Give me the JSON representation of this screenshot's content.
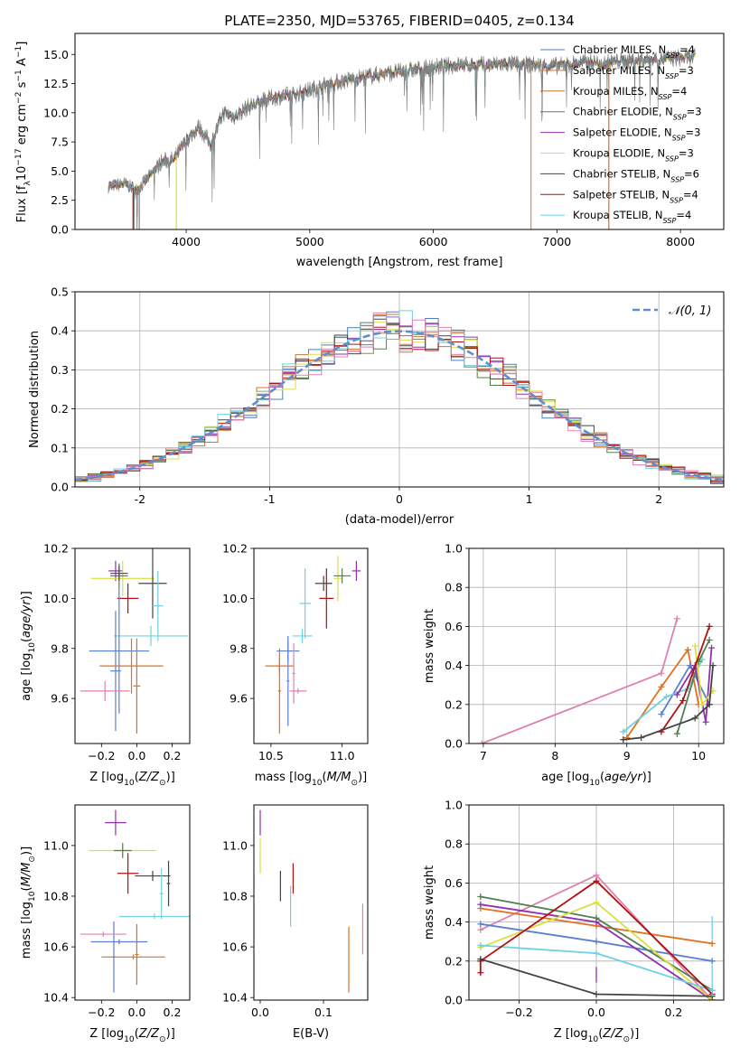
{
  "chart_data": [
    {
      "type": "line",
      "title": "PLATE=2350, MJD=53765, FIBERID=0405, z=0.134",
      "xlabel": "wavelength [Angstrom, rest frame]",
      "ylabel": "Flux [fλ10⁻¹⁷ erg cm⁻² s⁻¹ A⁻¹]",
      "xlim": [
        3100,
        8350
      ],
      "ylim": [
        0,
        16.8
      ],
      "xticks": [
        4000,
        5000,
        6000,
        7000,
        8000
      ],
      "yticks": [
        0.0,
        2.5,
        5.0,
        7.5,
        10.0,
        12.5,
        15.0
      ],
      "grid": false,
      "legend_position": "top-right",
      "data_range_x": [
        3370,
        8120
      ],
      "continuum_knots": {
        "x": [
          3370,
          3500,
          3600,
          3700,
          3800,
          3900,
          4000,
          4100,
          4200,
          4300,
          4400,
          4500,
          4700,
          4900,
          5100,
          5300,
          5500,
          5800,
          6000,
          6200,
          6400,
          6600,
          6800,
          7000,
          7200,
          7400,
          7600,
          7800,
          8000,
          8120
        ],
        "y": [
          3.7,
          3.9,
          3.4,
          4.5,
          5.8,
          6.0,
          7.6,
          8.8,
          7.3,
          10.0,
          9.7,
          10.5,
          11.3,
          11.6,
          12.3,
          12.8,
          13.2,
          13.6,
          13.9,
          14.1,
          14.1,
          14.2,
          14.1,
          14.0,
          14.3,
          14.3,
          14.5,
          14.6,
          14.7,
          14.8
        ]
      },
      "series": [
        {
          "name": "Chabrier MILES, N_SSP=4",
          "label_main": "Chabrier MILES, N",
          "label_sub": "SSP",
          "label_tail": "=4",
          "color": "#4a7fc0"
        },
        {
          "name": "Salpeter MILES, N_SSP=3",
          "label_main": "Salpeter MILES, N",
          "label_sub": "SSP",
          "label_tail": "=3",
          "color": "#e07020"
        },
        {
          "name": "Kroupa MILES, N_SSP=4",
          "label_main": "Kroupa MILES, N",
          "label_sub": "SSP",
          "label_tail": "=4",
          "color": "#c07830"
        },
        {
          "name": "Chabrier ELODIE, N_SSP=3",
          "label_main": "Chabrier ELODIE, N",
          "label_sub": "SSP",
          "label_tail": "=3",
          "color": "#508050"
        },
        {
          "name": "Salpeter ELODIE, N_SSP=3",
          "label_main": "Salpeter ELODIE, N",
          "label_sub": "SSP",
          "label_tail": "=3",
          "color": "#9030b0"
        },
        {
          "name": "Kroupa ELODIE, N_SSP=3",
          "label_main": "Kroupa ELODIE, N",
          "label_sub": "SSP",
          "label_tail": "=3",
          "color": "#d8e040"
        },
        {
          "name": "Chabrier STELIB, N_SSP=6",
          "label_main": "Chabrier STELIB, N",
          "label_sub": "SSP",
          "label_tail": "=6",
          "color": "#444444"
        },
        {
          "name": "Salpeter STELIB, N_SSP=4",
          "label_main": "Salpeter STELIB, N",
          "label_sub": "SSP",
          "label_tail": "=4",
          "color": "#b01010"
        },
        {
          "name": "Kroupa STELIB, N_SSP=4",
          "label_main": "Kroupa STELIB, N",
          "label_sub": "SSP",
          "label_tail": "=4",
          "color": "#70d0e0"
        }
      ],
      "data_line_color": "#808080",
      "vertical_drops": [
        {
          "x": 3570,
          "color": "#b01010"
        },
        {
          "x": 3620,
          "color": "#808080"
        },
        {
          "x": 3920,
          "color": "#d8e040"
        },
        {
          "x": 6790,
          "color": "#c8a040"
        },
        {
          "x": 7420,
          "color": "#e07020"
        }
      ]
    },
    {
      "type": "histogram",
      "xlabel": "(data-model)/error",
      "ylabel": "Normed distribution",
      "xlim": [
        -2.5,
        2.5
      ],
      "ylim": [
        0,
        0.5
      ],
      "xticks": [
        -2,
        -1,
        0,
        1,
        2
      ],
      "yticks": [
        0.0,
        0.1,
        0.2,
        0.3,
        0.4,
        0.5
      ],
      "grid": true,
      "legend_position": "top-right",
      "bin_width": 0.1,
      "reference_curve": {
        "name": "𝒩(0, 1)",
        "mean": 0,
        "sigma": 1,
        "color": "#5b8fd0",
        "style": "dashed"
      },
      "series_colors": [
        "#4a7fc0",
        "#e07020",
        "#c07830",
        "#508050",
        "#9030b0",
        "#d8e040",
        "#444444",
        "#b01010",
        "#70d0e0",
        "#e080b0"
      ]
    },
    {
      "type": "scatter",
      "subtype": "errorbar",
      "xlabel": "Z [log₁₀(Z/Z⊙)]",
      "ylabel": "age  [log₁₀(age/yr)]",
      "xlim": [
        -0.35,
        0.3
      ],
      "ylim": [
        9.42,
        10.2
      ],
      "xticks": [
        -0.2,
        0.0,
        0.2
      ],
      "xticklabels": [
        "−0.2",
        "0.0",
        "0.2"
      ],
      "yticks": [
        9.6,
        9.8,
        10.0,
        10.2
      ],
      "yticklabels": [
        "9.6",
        "9.8",
        "10.0",
        "10.2"
      ],
      "grid": false,
      "points": [
        {
          "x": -0.12,
          "y": 10.11,
          "xerr": 0.04,
          "yerr": 0.04,
          "color": "#9030b0"
        },
        {
          "x": -0.08,
          "y": 10.08,
          "xerr": 0.18,
          "yerr": 0.07,
          "color": "#d8e040"
        },
        {
          "x": -0.1,
          "y": 10.09,
          "xerr": 0.05,
          "yerr": 0.05,
          "color": "#508050"
        },
        {
          "x": -0.1,
          "y": 10.1,
          "xerr": 0.05,
          "yerr": 0.03,
          "color": "#444444"
        },
        {
          "x": -0.05,
          "y": 10.0,
          "xerr": 0.06,
          "yerr": 0.06,
          "color": "#b01010"
        },
        {
          "x": 0.09,
          "y": 10.06,
          "xerr": 0.08,
          "yerr": 0.14,
          "color": "#444444"
        },
        {
          "x": 0.12,
          "y": 9.97,
          "xerr": 0.03,
          "yerr": 0.14,
          "color": "#70d0e0"
        },
        {
          "x": 0.08,
          "y": 9.85,
          "xerr": 0.21,
          "yerr": 0.04,
          "color": "#70d0e0"
        },
        {
          "x": -0.1,
          "y": 9.79,
          "xerr": 0.17,
          "yerr": 0.25,
          "color": "#5b7fd0"
        },
        {
          "x": -0.12,
          "y": 9.71,
          "xerr": 0.03,
          "yerr": 0.24,
          "color": "#5b7fd0"
        },
        {
          "x": -0.03,
          "y": 9.73,
          "xerr": 0.18,
          "yerr": 0.11,
          "color": "#e07020"
        },
        {
          "x": 0.0,
          "y": 9.65,
          "xerr": 0.02,
          "yerr": 0.19,
          "color": "#e07020"
        },
        {
          "x": -0.18,
          "y": 9.63,
          "xerr": 0.14,
          "yerr": 0.04,
          "color": "#e080b0"
        }
      ]
    },
    {
      "type": "scatter",
      "subtype": "errorbar",
      "xlabel": "mass [log₁₀(M/M⊙)]",
      "xlim": [
        10.38,
        11.18
      ],
      "ylim": [
        9.42,
        10.2
      ],
      "xticks": [
        10.5,
        11.0
      ],
      "xticklabels": [
        "10.5",
        "11.0"
      ],
      "yticks": [
        9.6,
        9.8,
        10.0,
        10.2
      ],
      "yticklabels": [
        "9.6",
        "9.8",
        "10.0",
        "10.2"
      ],
      "grid": false,
      "points": [
        {
          "x": 11.1,
          "y": 10.11,
          "xerr": 0.03,
          "yerr": 0.04,
          "color": "#9030b0"
        },
        {
          "x": 10.97,
          "y": 10.08,
          "xerr": 0.03,
          "yerr": 0.09,
          "color": "#d8e040"
        },
        {
          "x": 11.0,
          "y": 10.09,
          "xerr": 0.06,
          "yerr": 0.03,
          "color": "#508050"
        },
        {
          "x": 10.87,
          "y": 10.06,
          "xerr": 0.06,
          "yerr": 0.03,
          "color": "#444444"
        },
        {
          "x": 10.89,
          "y": 10.0,
          "xerr": 0.05,
          "yerr": 0.12,
          "color": "#b01010"
        },
        {
          "x": 10.74,
          "y": 9.98,
          "xerr": 0.04,
          "yerr": 0.14,
          "color": "#70d0e0"
        },
        {
          "x": 10.72,
          "y": 9.85,
          "xerr": 0.07,
          "yerr": 0.03,
          "color": "#70d0e0"
        },
        {
          "x": 10.62,
          "y": 9.79,
          "xerr": 0.08,
          "yerr": 0.04,
          "color": "#5b7fd0"
        },
        {
          "x": 10.62,
          "y": 9.67,
          "xerr": 0.01,
          "yerr": 0.18,
          "color": "#5b7fd0"
        },
        {
          "x": 10.56,
          "y": 9.73,
          "xerr": 0.1,
          "yerr": 0.03,
          "color": "#e07020"
        },
        {
          "x": 10.56,
          "y": 9.63,
          "xerr": 0.01,
          "yerr": 0.17,
          "color": "#e07020"
        },
        {
          "x": 10.66,
          "y": 9.7,
          "xerr": 0.01,
          "yerr": 0.12,
          "color": "#e080b0"
        },
        {
          "x": 10.69,
          "y": 9.63,
          "xerr": 0.06,
          "yerr": 0.01,
          "color": "#e080b0"
        }
      ]
    },
    {
      "type": "line",
      "xlabel": "age  [log₁₀(age/yr)]",
      "ylabel": "mass weight",
      "xlim": [
        6.8,
        10.35
      ],
      "ylim": [
        0,
        1.0
      ],
      "xticks": [
        7,
        8,
        9,
        10
      ],
      "xticklabels": [
        "7",
        "8",
        "9",
        "10"
      ],
      "yticks": [
        0.0,
        0.2,
        0.4,
        0.6,
        0.8,
        1.0
      ],
      "yticklabels": [
        "0.0",
        "0.2",
        "0.4",
        "0.6",
        "0.8",
        "1.0"
      ],
      "grid": true,
      "series": [
        {
          "color": "#e080b0",
          "x": [
            6.98,
            9.48,
            9.7
          ],
          "y": [
            0.0,
            0.36,
            0.64
          ]
        },
        {
          "color": "#e07020",
          "x": [
            9.0,
            9.48,
            9.85,
            10.0
          ],
          "y": [
            0.03,
            0.29,
            0.48,
            0.2
          ]
        },
        {
          "color": "#5b7fd0",
          "x": [
            9.48,
            9.88,
            10.15
          ],
          "y": [
            0.15,
            0.4,
            0.2
          ]
        },
        {
          "color": "#70d0e0",
          "x": [
            8.95,
            9.55,
            9.85,
            10.05
          ],
          "y": [
            0.06,
            0.24,
            0.28,
            0.43
          ]
        },
        {
          "color": "#508050",
          "x": [
            9.7,
            10.0,
            10.15
          ],
          "y": [
            0.05,
            0.42,
            0.53
          ]
        },
        {
          "color": "#9030b0",
          "x": [
            9.7,
            9.95,
            10.1,
            10.18
          ],
          "y": [
            0.25,
            0.4,
            0.11,
            0.49
          ]
        },
        {
          "color": "#d8e040",
          "x": [
            9.95,
            10.05,
            10.2
          ],
          "y": [
            0.5,
            0.2,
            0.27
          ]
        },
        {
          "color": "#b01010",
          "x": [
            9.48,
            9.78,
            10.15
          ],
          "y": [
            0.06,
            0.22,
            0.6
          ]
        },
        {
          "color": "#444444",
          "x": [
            8.95,
            9.2,
            9.95,
            10.15,
            10.2
          ],
          "y": [
            0.02,
            0.03,
            0.13,
            0.2,
            0.4
          ]
        }
      ]
    },
    {
      "type": "scatter",
      "subtype": "errorbar",
      "xlabel": "Z [log₁₀(Z/Z⊙)]",
      "ylabel": "mass [log₁₀(M/M⊙)]",
      "xlim": [
        -0.35,
        0.3
      ],
      "ylim": [
        10.39,
        11.16
      ],
      "xticks": [
        -0.2,
        0.0,
        0.2
      ],
      "xticklabels": [
        "−0.2",
        "0.0",
        "0.2"
      ],
      "yticks": [
        10.4,
        10.6,
        10.8,
        11.0
      ],
      "yticklabels": [
        "10.4",
        "10.6",
        "10.8",
        "11.0"
      ],
      "grid": false,
      "points": [
        {
          "x": -0.12,
          "y": 11.09,
          "xerr": 0.06,
          "yerr": 0.05,
          "color": "#9030b0"
        },
        {
          "x": -0.08,
          "y": 10.98,
          "xerr": 0.19,
          "yerr": 0.02,
          "color": "#d8e040"
        },
        {
          "x": -0.08,
          "y": 10.98,
          "xerr": 0.05,
          "yerr": 0.03,
          "color": "#508050"
        },
        {
          "x": -0.05,
          "y": 10.89,
          "xerr": 0.06,
          "yerr": 0.08,
          "color": "#b01010"
        },
        {
          "x": 0.09,
          "y": 10.88,
          "xerr": 0.1,
          "yerr": 0.02,
          "color": "#444444"
        },
        {
          "x": 0.18,
          "y": 10.85,
          "xerr": 0.01,
          "yerr": 0.09,
          "color": "#444444"
        },
        {
          "x": 0.14,
          "y": 10.81,
          "xerr": 0.01,
          "yerr": 0.1,
          "color": "#70d0e0"
        },
        {
          "x": 0.1,
          "y": 10.72,
          "xerr": 0.2,
          "yerr": 0.01,
          "color": "#70d0e0"
        },
        {
          "x": -0.1,
          "y": 10.62,
          "xerr": 0.16,
          "yerr": 0.01,
          "color": "#5b7fd0"
        },
        {
          "x": -0.13,
          "y": 10.56,
          "xerr": 0.01,
          "yerr": 0.14,
          "color": "#5b7fd0"
        },
        {
          "x": -0.19,
          "y": 10.65,
          "xerr": 0.13,
          "yerr": 0.01,
          "color": "#e080b0"
        },
        {
          "x": -0.02,
          "y": 10.56,
          "xerr": 0.18,
          "yerr": 0.01,
          "color": "#e07020"
        },
        {
          "x": 0.0,
          "y": 10.57,
          "xerr": 0.01,
          "yerr": 0.12,
          "color": "#e07020"
        }
      ]
    },
    {
      "type": "scatter",
      "subtype": "errorbar",
      "xlabel": "E(B-V)",
      "xlim": [
        -0.01,
        0.17
      ],
      "ylim": [
        10.39,
        11.16
      ],
      "xticks": [
        0.0,
        0.1
      ],
      "xticklabels": [
        "0.0",
        "0.1"
      ],
      "yticks": [
        10.4,
        10.6,
        10.8,
        11.0
      ],
      "yticklabels": [
        "10.4",
        "10.6",
        "10.8",
        "11.0"
      ],
      "grid": false,
      "points": [
        {
          "x": 0.0,
          "y": 11.09,
          "xerr": 0,
          "yerr": 0.05,
          "color": "#9030b0"
        },
        {
          "x": 0.0,
          "y": 10.96,
          "xerr": 0,
          "yerr": 0.07,
          "color": "#d8e040"
        },
        {
          "x": 0.032,
          "y": 10.84,
          "xerr": 0,
          "yerr": 0.06,
          "color": "#444444"
        },
        {
          "x": 0.048,
          "y": 10.76,
          "xerr": 0,
          "yerr": 0.08,
          "color": "#70d0e0"
        },
        {
          "x": 0.052,
          "y": 10.87,
          "xerr": 0,
          "yerr": 0.06,
          "color": "#b01010"
        },
        {
          "x": 0.14,
          "y": 10.55,
          "xerr": 0,
          "yerr": 0.13,
          "color": "#e07020"
        },
        {
          "x": 0.162,
          "y": 10.67,
          "xerr": 0,
          "yerr": 0.1,
          "color": "#e080b0"
        }
      ]
    },
    {
      "type": "line",
      "xlabel": "Z [log₁₀(Z/Z⊙)]",
      "ylabel": "mass weight",
      "xlim": [
        -0.33,
        0.33
      ],
      "ylim": [
        0,
        1.0
      ],
      "xticks": [
        -0.2,
        0.0,
        0.2
      ],
      "xticklabels": [
        "−0.2",
        "0.0",
        "0.2"
      ],
      "yticks": [
        0.0,
        0.2,
        0.4,
        0.6,
        0.8,
        1.0
      ],
      "yticklabels": [
        "0.0",
        "0.2",
        "0.4",
        "0.6",
        "0.8",
        "1.0"
      ],
      "grid": true,
      "series": [
        {
          "color": "#e080b0",
          "x": [
            -0.3,
            0.0,
            0.3
          ],
          "y": [
            0.36,
            0.64,
            0.0
          ]
        },
        {
          "color": "#e07020",
          "x": [
            -0.3,
            0.0,
            0.3
          ],
          "y": [
            0.47,
            0.38,
            0.29
          ]
        },
        {
          "color": "#5b7fd0",
          "x": [
            -0.3,
            0.0,
            0.3
          ],
          "y": [
            0.39,
            0.3,
            0.2
          ]
        },
        {
          "color": "#508050",
          "x": [
            -0.3,
            0.0,
            0.3
          ],
          "y": [
            0.53,
            0.42,
            0.05
          ]
        },
        {
          "color": "#9030b0",
          "x": [
            -0.3,
            0.0,
            0.3
          ],
          "y": [
            0.49,
            0.4,
            0.0
          ]
        },
        {
          "color": "#d8e040",
          "x": [
            -0.3,
            0.0,
            0.3
          ],
          "y": [
            0.27,
            0.5,
            0.0
          ]
        },
        {
          "color": "#70d0e0",
          "x": [
            -0.3,
            0.0,
            0.3
          ],
          "y": [
            0.28,
            0.24,
            0.05
          ]
        },
        {
          "color": "#b01010",
          "x": [
            -0.3,
            -0.3,
            0.0,
            0.3
          ],
          "y": [
            0.14,
            0.2,
            0.61,
            0.03
          ]
        },
        {
          "color": "#444444",
          "x": [
            -0.3,
            0.0,
            0.3
          ],
          "y": [
            0.21,
            0.03,
            0.02
          ]
        }
      ],
      "errorbars": [
        {
          "x": -0.3,
          "y": 0.17,
          "yerr": 0.04,
          "color": "#b01010"
        },
        {
          "x": 0.0,
          "y": 0.13,
          "yerr": 0.04,
          "color": "#9030b0"
        },
        {
          "x": 0.3,
          "y": 0.37,
          "yerr": 0.06,
          "color": "#70d0e0"
        },
        {
          "x": 0.3,
          "y": 0.1,
          "yerr": 0.08,
          "color": "#70d0e0"
        }
      ]
    }
  ]
}
